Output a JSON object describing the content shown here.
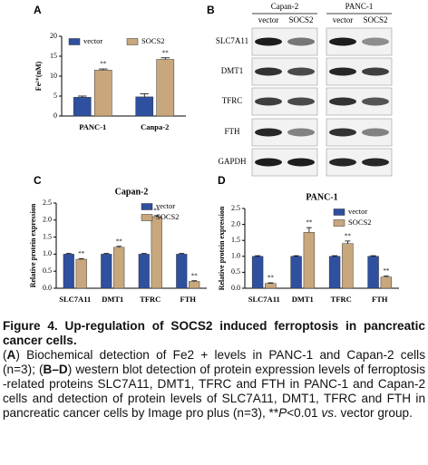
{
  "panel_labels": [
    "A",
    "B",
    "C",
    "D"
  ],
  "chart_data": [
    {
      "type": "bar",
      "ylabel": "Fe²⁺(nM)",
      "categories": [
        "PANC-1",
        "Canpa-2"
      ],
      "series": [
        {
          "name": "vector",
          "color": "#2f4f9f",
          "values": [
            4.7,
            4.8
          ],
          "errors": [
            0.3,
            0.8
          ]
        },
        {
          "name": "SOCS2",
          "color": "#c9a77c",
          "values": [
            11.5,
            14.2
          ],
          "errors": [
            0.3,
            0.4
          ]
        }
      ],
      "ylim": [
        0,
        20
      ],
      "yticks": [
        0,
        5,
        10,
        15,
        20
      ],
      "legend": "top",
      "annotation": "**"
    },
    {
      "type": "bar",
      "title": "Capan-2",
      "ylabel": "Relative protein expression",
      "categories": [
        "SLC7A11",
        "DMT1",
        "TFRC",
        "FTH"
      ],
      "series": [
        {
          "name": "vector",
          "color": "#2f4f9f",
          "values": [
            1.0,
            1.0,
            1.0,
            1.0
          ],
          "errors": [
            0.02,
            0.02,
            0.02,
            0.02
          ]
        },
        {
          "name": "SOCS2",
          "color": "#c9a77c",
          "values": [
            0.85,
            1.2,
            2.1,
            0.2
          ],
          "errors": [
            0.02,
            0.03,
            0.03,
            0.02
          ]
        }
      ],
      "ylim": [
        0,
        2.5
      ],
      "yticks": [
        {
          "value": 0,
          "label": "0.0"
        },
        0.5,
        {
          "value": 1,
          "label": "1.0"
        },
        1.5,
        {
          "value": 2,
          "label": "2.0"
        },
        2.5
      ],
      "legend": "top-right",
      "annotation": "**"
    },
    {
      "type": "bar",
      "title": "PANC-1",
      "ylabel": "Relative protein expression",
      "categories": [
        "SLC7A11",
        "DMT1",
        "TFRC",
        "FTH"
      ],
      "series": [
        {
          "name": "vector",
          "color": "#2f4f9f",
          "values": [
            1.0,
            1.0,
            1.0,
            1.0
          ],
          "errors": [
            0.02,
            0.02,
            0.02,
            0.02
          ]
        },
        {
          "name": "SOCS2",
          "color": "#c9a77c",
          "values": [
            0.15,
            1.75,
            1.4,
            0.35
          ],
          "errors": [
            0.02,
            0.15,
            0.08,
            0.03
          ]
        }
      ],
      "ylim": [
        0,
        2.5
      ],
      "yticks": [
        {
          "value": 0,
          "label": "0.0"
        },
        0.5,
        {
          "value": 1,
          "label": "1.0"
        },
        1.5,
        {
          "value": 2,
          "label": "2.0"
        },
        2.5
      ],
      "legend": "top-right",
      "annotation": "**"
    }
  ],
  "blot": {
    "groups": [
      "Capan-2",
      "PANC-1"
    ],
    "lanes": [
      "vector",
      "SOCS2"
    ],
    "proteins": [
      "SLC7A11",
      "DMT1",
      "TFRC",
      "FTH",
      "GAPDH"
    ]
  },
  "caption": {
    "title": "Figure 4. Up-regulation of SOCS2 induced ferroptosis in pancreatic cancer cells.",
    "body": [
      "(",
      "A",
      ") Biochemical detection of Fe2 + levels in PANC-1 and Capan-2 cells (n=3); (",
      "B–D",
      ") western blot detection of protein expression levels of ferroptosis -related proteins SLC7A11, DMT1, TFRC and FTH in PANC-1 and Capan-2 cells and detection of protein levels of SLC7A11, DMT1, TFRC and FTH in pancreatic cancer cells by Image pro plus (n=3), **",
      "P",
      "<0.01 ",
      "vs",
      ". vector group."
    ]
  }
}
